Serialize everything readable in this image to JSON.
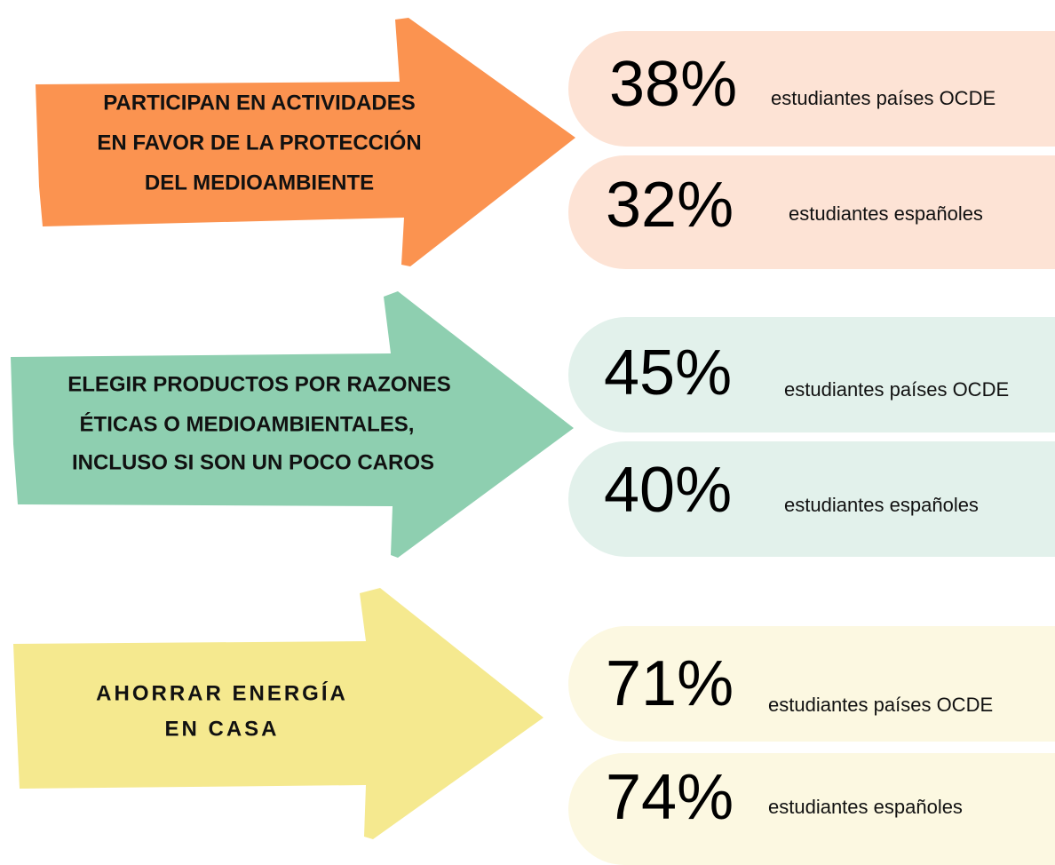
{
  "groups": [
    {
      "label_lines": [
        "PARTICIPAN EN ACTIVIDADES",
        "EN FAVOR DE LA PROTECCIÓN",
        "DEL MEDIOAMBIENTE"
      ],
      "stats": [
        {
          "value": "38%",
          "label": "estudiantes países OCDE"
        },
        {
          "value": "32%",
          "label": "estudiantes españoles"
        }
      ]
    },
    {
      "label_lines": [
        "ELEGIR PRODUCTOS POR RAZONES",
        "ÉTICAS O MEDIOAMBIENTALES,",
        "INCLUSO SI SON UN POCO CAROS"
      ],
      "stats": [
        {
          "value": "45%",
          "label": "estudiantes países OCDE"
        },
        {
          "value": "40%",
          "label": "estudiantes españoles"
        }
      ]
    },
    {
      "label_lines": [
        "AHORRAR ENERGÍA",
        "EN CASA"
      ],
      "stats": [
        {
          "value": "71%",
          "label": "estudiantes países OCDE"
        },
        {
          "value": "74%",
          "label": "estudiantes españoles"
        }
      ]
    }
  ]
}
